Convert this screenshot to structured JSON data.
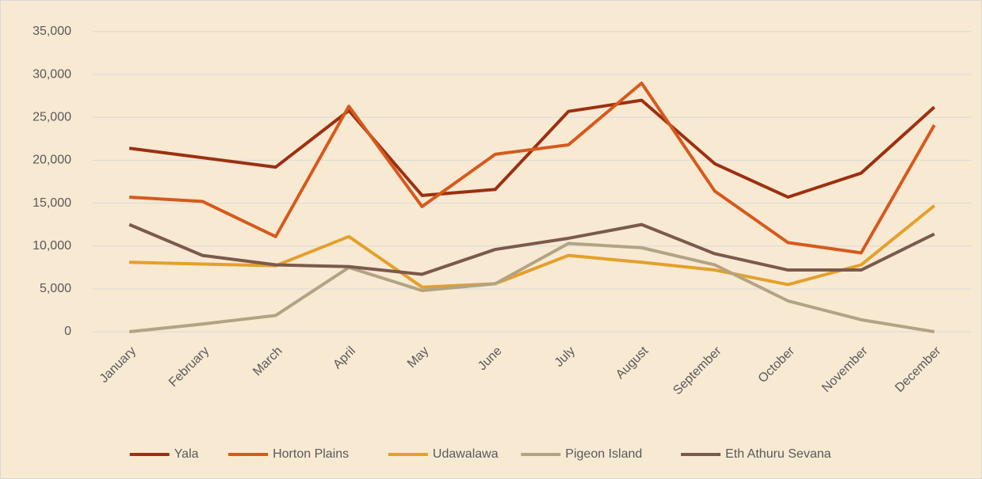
{
  "chart_data": {
    "type": "line",
    "categories": [
      "January",
      "February",
      "March",
      "April",
      "May",
      "June",
      "July",
      "August",
      "September",
      "October",
      "November",
      "December"
    ],
    "series": [
      {
        "name": "Yala",
        "color": "#9c3010",
        "values": [
          21400,
          20300,
          19200,
          25800,
          15900,
          16600,
          25700,
          27000,
          19600,
          15700,
          18500,
          26200
        ]
      },
      {
        "name": "Horton Plains",
        "color": "#d55a1c",
        "values": [
          15700,
          15200,
          11100,
          26300,
          14600,
          20700,
          21800,
          29000,
          16400,
          10400,
          9200,
          24100
        ]
      },
      {
        "name": "Udawalawa",
        "color": "#e3a02c",
        "values": [
          8100,
          7900,
          7700,
          11100,
          5200,
          5600,
          8900,
          8100,
          7200,
          5500,
          7800,
          14700
        ]
      },
      {
        "name": "Pigeon Island",
        "color": "#b3a385",
        "values": [
          0,
          900,
          1900,
          7500,
          4800,
          5600,
          10300,
          9800,
          7800,
          3600,
          1400,
          0
        ]
      },
      {
        "name": "Eth Athuru Sevana",
        "color": "#7b5a4b",
        "values": [
          12500,
          8900,
          7800,
          7600,
          6700,
          9600,
          10900,
          12500,
          9100,
          7200,
          7200,
          11400
        ]
      }
    ],
    "ylim": [
      0,
      35000
    ],
    "yticks": [
      0,
      {
        "value": 5000,
        "label": "5,000"
      },
      {
        "value": 10000,
        "label": "10,000"
      },
      {
        "value": 15000,
        "label": "15,000"
      },
      {
        "value": 20000,
        "label": "20,000"
      },
      {
        "value": 25000,
        "label": "25,000"
      },
      {
        "value": 30000,
        "label": "30,000"
      },
      {
        "value": 35000,
        "label": "35,000"
      }
    ],
    "grid": true,
    "legend": "bottom"
  }
}
